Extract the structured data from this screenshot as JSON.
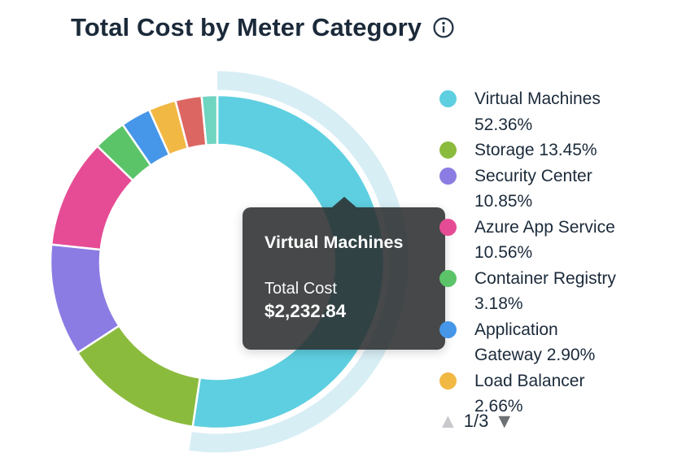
{
  "header": {
    "title": "Total Cost by Meter Category"
  },
  "icons": {
    "info": "i",
    "page_up": "▲",
    "page_down": "▼"
  },
  "colors": {
    "text": "#1B2A3A",
    "tooltip_bg": "#2A2D2E",
    "halo": "#D8EEF5",
    "page_up_arrow": "#C8C9CC",
    "page_down_arrow": "#6E7174"
  },
  "chart_data": {
    "type": "pie",
    "subtype": "donut",
    "title": "Total Cost by Meter Category",
    "unit": "percent",
    "start_angle_deg": 0,
    "direction": "clockwise",
    "legend_position": "right",
    "halo_color": "#D8EEF5",
    "slices": [
      {
        "label": "Virtual Machines",
        "value": 52.36,
        "color": "#5ECFE0",
        "highlighted": true
      },
      {
        "label": "Storage",
        "value": 13.45,
        "color": "#8BBB3D",
        "highlighted": false
      },
      {
        "label": "Security Center",
        "value": 10.85,
        "color": "#8B7CE4",
        "highlighted": false
      },
      {
        "label": "Azure App Service",
        "value": 10.56,
        "color": "#E64C95",
        "highlighted": false
      },
      {
        "label": "Container Registry",
        "value": 3.18,
        "color": "#5BC468",
        "highlighted": false
      },
      {
        "label": "Application Gateway",
        "value": 2.9,
        "color": "#4696E9",
        "highlighted": false
      },
      {
        "label": "Load Balancer",
        "value": 2.66,
        "color": "#F2B844",
        "highlighted": false
      },
      {
        "label": "",
        "value": 2.54,
        "color": "#DC6662",
        "highlighted": false
      },
      {
        "label": "",
        "value": 1.5,
        "color": "#6FD4C0",
        "highlighted": false
      }
    ]
  },
  "tooltip": {
    "title": "Virtual Machines",
    "metric_label": "Total Cost",
    "value": "$2,232.84"
  },
  "pagination": {
    "label": "1/3"
  }
}
